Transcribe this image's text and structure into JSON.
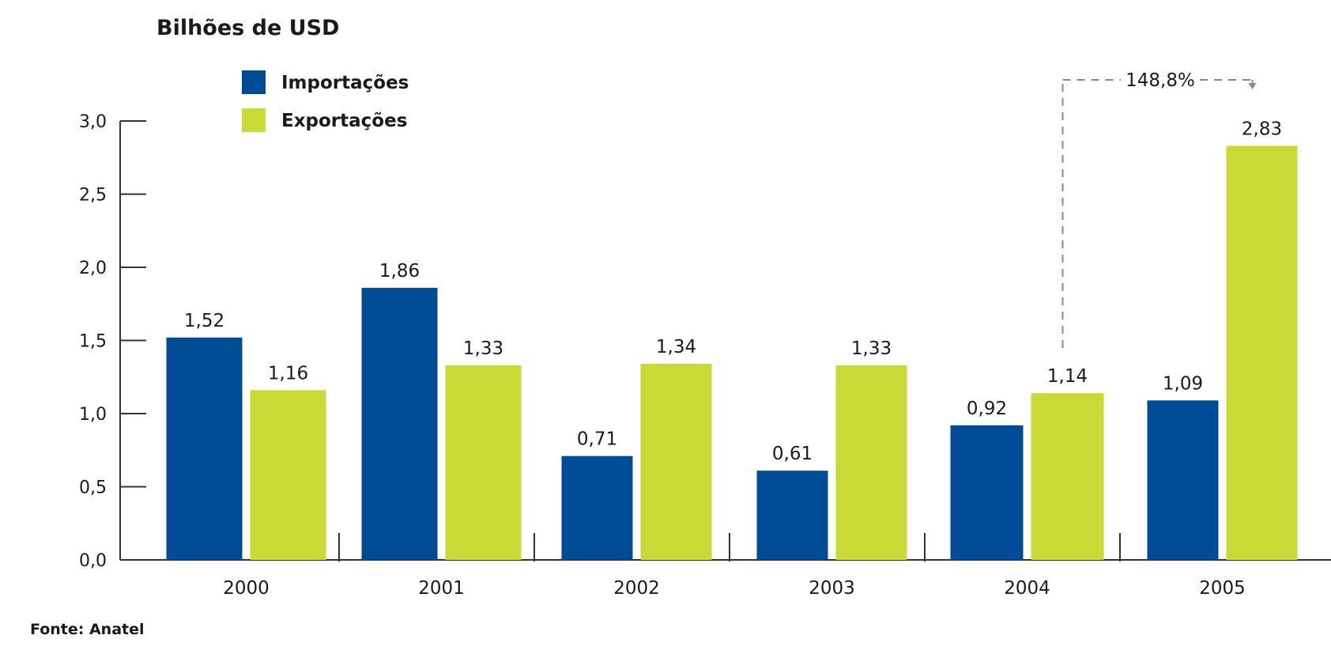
{
  "chart_data": {
    "type": "bar",
    "title": "",
    "unit_label": "Bilhões de USD",
    "xlabel": "",
    "ylabel": "",
    "categories": [
      "2000",
      "2001",
      "2002",
      "2003",
      "2004",
      "2005"
    ],
    "series": [
      {
        "name": "Importações",
        "color": "#004b96",
        "values": [
          1.52,
          1.86,
          0.71,
          0.61,
          0.92,
          1.09
        ],
        "labels": [
          "1,52",
          "1,86",
          "0,71",
          "0,61",
          "0,92",
          "1,09"
        ]
      },
      {
        "name": "Exportações",
        "color": "#c9d935",
        "values": [
          1.16,
          1.33,
          1.34,
          1.33,
          1.14,
          2.83
        ],
        "labels": [
          "1,16",
          "1,33",
          "1,34",
          "1,33",
          "1,14",
          "2,83"
        ]
      }
    ],
    "ylim": [
      0,
      3.0
    ],
    "yticks": [
      {
        "value": 0.0,
        "label": "0,0"
      },
      {
        "value": 0.5,
        "label": "0,5"
      },
      {
        "value": 1.0,
        "label": "1,0"
      },
      {
        "value": 1.5,
        "label": "1,5"
      },
      {
        "value": 2.0,
        "label": "2,0"
      },
      {
        "value": 2.5,
        "label": "2,5"
      },
      {
        "value": 3.0,
        "label": "3,0"
      }
    ],
    "grid": false,
    "legend_position": "top-left",
    "annotations": [
      {
        "text": "148,8%",
        "from_category": "2004",
        "to_category": "2005",
        "series": "Exportações"
      }
    ]
  },
  "source": "Fonte: Anatel"
}
